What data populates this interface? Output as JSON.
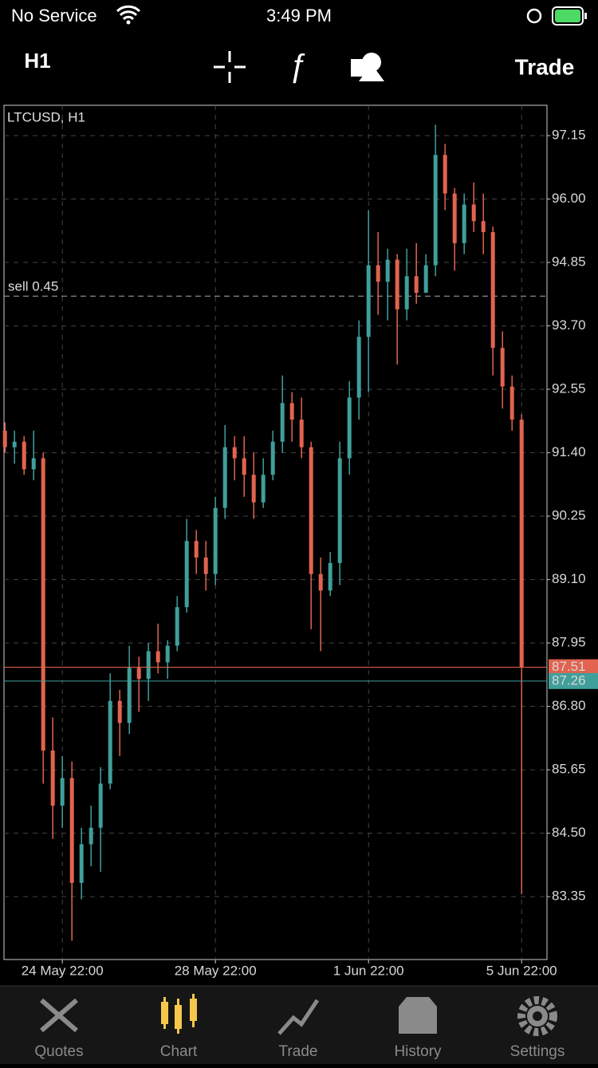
{
  "status_bar": {
    "carrier": "No Service",
    "time": "3:49 PM"
  },
  "toolbar": {
    "timeframe": "H1",
    "trade": "Trade"
  },
  "chart_data": {
    "type": "candlestick",
    "title": "LTCUSD, H1",
    "x": [
      0,
      1,
      2,
      3,
      4,
      5,
      6,
      7,
      8,
      9,
      10,
      11,
      12,
      13,
      14,
      15,
      16,
      17,
      18,
      19,
      20,
      21,
      22,
      23,
      24,
      25,
      26,
      27,
      28,
      29,
      30,
      31,
      32,
      33,
      34,
      35,
      36,
      37,
      38,
      39,
      40,
      41,
      42,
      43,
      44,
      45,
      46,
      47,
      48,
      49,
      50,
      51,
      52,
      53,
      54
    ],
    "open": [
      91.8,
      91.5,
      91.6,
      91.1,
      91.3,
      86.0,
      85.0,
      85.5,
      83.6,
      84.3,
      84.6,
      85.4,
      86.9,
      86.5,
      87.5,
      87.3,
      87.8,
      87.6,
      87.9,
      88.6,
      89.8,
      89.5,
      89.2,
      90.4,
      91.5,
      91.3,
      91.0,
      90.5,
      91.0,
      91.6,
      92.3,
      92.0,
      91.5,
      89.2,
      88.9,
      89.4,
      91.3,
      92.4,
      93.5,
      94.8,
      94.5,
      94.9,
      94.0,
      94.6,
      94.3,
      94.8,
      96.8,
      96.1,
      95.2,
      95.9,
      95.6,
      95.4,
      93.3,
      92.6,
      92.0
    ],
    "high": [
      91.95,
      91.8,
      91.7,
      91.8,
      91.4,
      86.6,
      85.9,
      85.8,
      84.6,
      85.0,
      85.7,
      87.4,
      87.1,
      87.9,
      87.7,
      87.95,
      88.3,
      88.0,
      88.8,
      90.2,
      90.0,
      89.8,
      90.6,
      91.9,
      91.7,
      91.7,
      91.4,
      91.3,
      91.8,
      92.8,
      92.5,
      92.4,
      91.6,
      89.5,
      89.6,
      91.6,
      92.7,
      93.8,
      95.8,
      95.4,
      95.1,
      95.0,
      95.1,
      95.2,
      95.0,
      97.35,
      97.0,
      96.2,
      96.1,
      96.3,
      96.1,
      95.5,
      93.6,
      92.8,
      92.1
    ],
    "low": [
      91.4,
      91.2,
      91.0,
      90.9,
      85.4,
      84.4,
      84.6,
      82.55,
      83.3,
      83.9,
      83.8,
      85.3,
      85.9,
      86.3,
      86.7,
      86.9,
      87.4,
      87.3,
      87.8,
      88.5,
      89.2,
      88.9,
      89.0,
      90.2,
      90.9,
      90.6,
      90.2,
      90.4,
      90.9,
      91.4,
      91.6,
      91.3,
      88.2,
      87.8,
      88.8,
      89.0,
      91.0,
      92.0,
      92.5,
      93.9,
      93.8,
      93.0,
      93.8,
      94.1,
      94.3,
      94.6,
      95.8,
      94.7,
      95.0,
      95.4,
      95.0,
      92.8,
      92.2,
      91.8,
      83.4
    ],
    "close": [
      91.5,
      91.6,
      91.1,
      91.3,
      86.0,
      85.0,
      85.5,
      83.6,
      84.3,
      84.6,
      85.4,
      86.9,
      86.5,
      87.5,
      87.3,
      87.8,
      87.6,
      87.9,
      88.6,
      89.8,
      89.5,
      89.2,
      90.4,
      91.5,
      91.3,
      91.0,
      90.5,
      91.0,
      91.6,
      92.3,
      92.0,
      91.5,
      89.2,
      88.9,
      89.4,
      91.3,
      92.4,
      93.5,
      94.8,
      94.5,
      94.9,
      94.0,
      94.6,
      94.3,
      94.8,
      96.8,
      96.1,
      95.2,
      95.9,
      95.6,
      95.4,
      93.3,
      92.6,
      92.0,
      87.51
    ],
    "up_color": "#3f9f9b",
    "down_color": "#e2634f",
    "xlim": [
      -0.1,
      56.65
    ],
    "xticks": [
      {
        "value": 6,
        "label": "24 May 22:00"
      },
      {
        "value": 22,
        "label": "28 May 22:00"
      },
      {
        "value": 38,
        "label": "1 Jun 22:00"
      },
      {
        "value": 54,
        "label": "5 Jun 22:00"
      }
    ],
    "ylim": [
      82.21,
      97.7
    ],
    "yticks": [
      97.15,
      {
        "value": 96,
        "label": "96.00"
      },
      94.85,
      {
        "value": 93.7,
        "label": "93.70"
      },
      92.55,
      {
        "value": 91.4,
        "label": "91.40"
      },
      90.25,
      {
        "value": 89.1,
        "label": "89.10"
      },
      87.95,
      {
        "value": 86.8,
        "label": "86.80"
      },
      85.65,
      {
        "value": 84.5,
        "label": "84.50"
      },
      83.35
    ],
    "grid": true,
    "position_line": {
      "label": "sell 0.45",
      "value": 94.24
    },
    "bid_line": {
      "value": 87.51,
      "color": "#e2634f"
    },
    "ask_line": {
      "value": 87.26,
      "color": "#3f9f9b"
    }
  },
  "tab_bar": {
    "tabs": [
      "Quotes",
      "Chart",
      "Trade",
      "History",
      "Settings"
    ],
    "selected": 1
  }
}
